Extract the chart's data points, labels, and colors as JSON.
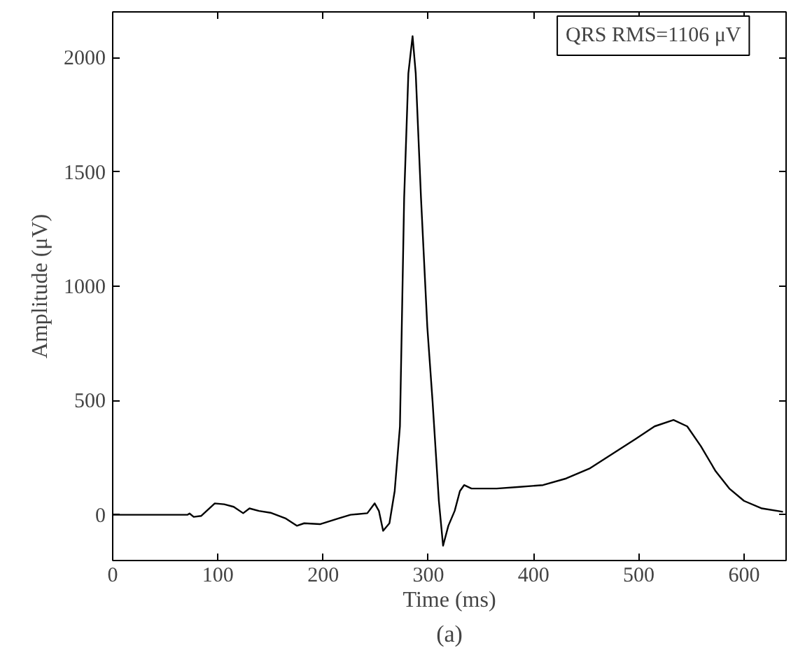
{
  "chart_data": {
    "type": "line",
    "xlabel": "Time (ms)",
    "ylabel": "Amplitude (μV)",
    "annotations": [
      "QRS RMS=1106 μV",
      "(a)"
    ],
    "x": [
      0,
      71,
      73,
      77,
      84,
      97,
      106,
      115,
      124,
      130,
      139,
      150,
      164,
      175,
      182,
      197,
      215,
      226,
      242,
      249,
      253,
      257,
      263,
      268,
      273,
      277,
      281,
      285,
      288,
      293,
      299,
      304,
      310,
      314,
      319,
      325,
      330,
      334,
      341,
      365,
      387,
      409,
      431,
      453,
      475,
      497,
      515,
      533,
      546,
      559,
      573,
      586,
      600,
      617,
      637
    ],
    "series": [
      {
        "color": "#000000",
        "values": [
          0,
          0,
          6,
          -9,
          -5,
          50,
          46,
          35,
          7,
          28,
          17,
          9,
          -15,
          -48,
          -37,
          -41,
          -15,
          0,
          7,
          50,
          17,
          -70,
          -37,
          104,
          387,
          1387,
          1931,
          2094,
          1931,
          1387,
          822,
          496,
          60,
          -135,
          -48,
          17,
          104,
          130,
          115,
          115,
          122,
          130,
          159,
          202,
          267,
          332,
          387,
          415,
          387,
          300,
          191,
          115,
          61,
          28,
          13
        ]
      }
    ],
    "xlim": [
      0,
      640
    ],
    "ylim": [
      -200,
      2200
    ],
    "xticks": [
      0,
      100,
      200,
      300,
      400,
      500,
      600
    ],
    "yticks": [
      0,
      500,
      1000,
      1500,
      2000
    ],
    "grid": false,
    "marker": "none",
    "line_style": "solid"
  }
}
